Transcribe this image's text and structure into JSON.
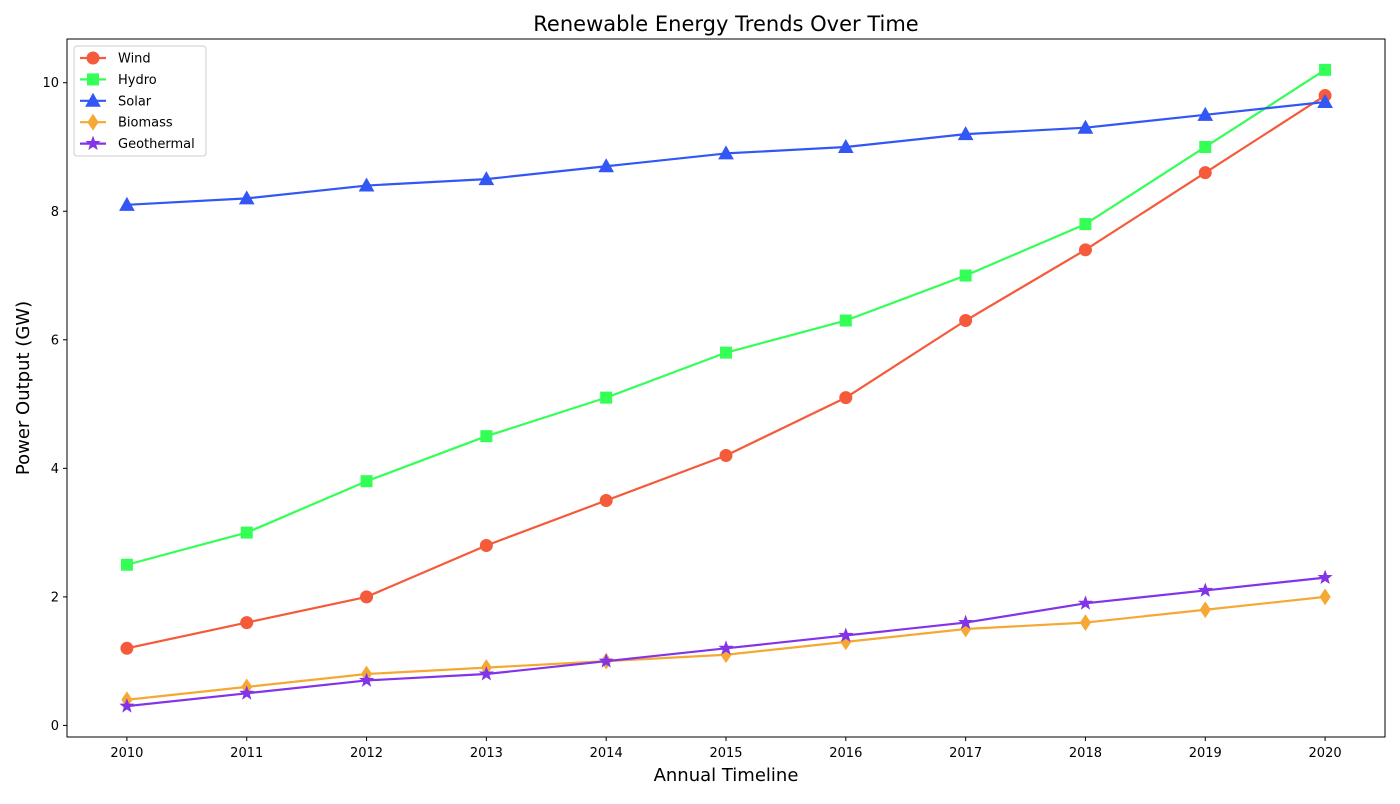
{
  "chart_data": {
    "type": "line",
    "title": "Renewable Energy Trends Over Time",
    "xlabel": "Annual Timeline",
    "ylabel": "Power Output (GW)",
    "x": [
      2010,
      2011,
      2012,
      2013,
      2014,
      2015,
      2016,
      2017,
      2018,
      2019,
      2020
    ],
    "x_tick_labels": [
      "2010",
      "2011",
      "2012",
      "2013",
      "2014",
      "2015",
      "2016",
      "2017",
      "2018",
      "2019",
      "2020"
    ],
    "xlim": [
      2009.5,
      2020.5
    ],
    "ylim": [
      -0.18,
      10.68
    ],
    "y_ticks": [
      0,
      2,
      4,
      6,
      8,
      10
    ],
    "y_tick_labels": [
      "0",
      "2",
      "4",
      "6",
      "8",
      "10"
    ],
    "grid": false,
    "legend_position": "top-left",
    "series": [
      {
        "name": "Wind",
        "color": "#f55a3a",
        "marker": "circle",
        "values": [
          1.2,
          1.6,
          2.0,
          2.8,
          3.5,
          4.2,
          5.1,
          6.3,
          7.4,
          8.6,
          9.8
        ]
      },
      {
        "name": "Hydro",
        "color": "#33ff57",
        "marker": "square",
        "values": [
          2.5,
          3.0,
          3.8,
          4.5,
          5.1,
          5.8,
          6.3,
          7.0,
          7.8,
          9.0,
          10.2
        ]
      },
      {
        "name": "Solar",
        "color": "#3357f5",
        "marker": "triangle",
        "values": [
          8.1,
          8.2,
          8.4,
          8.5,
          8.7,
          8.9,
          9.0,
          9.2,
          9.3,
          9.5,
          9.7
        ]
      },
      {
        "name": "Biomass",
        "color": "#f5a833",
        "marker": "diamond",
        "values": [
          0.4,
          0.6,
          0.8,
          0.9,
          1.0,
          1.1,
          1.3,
          1.5,
          1.6,
          1.8,
          2.0
        ]
      },
      {
        "name": "Geothermal",
        "color": "#8333e8",
        "marker": "star",
        "values": [
          0.3,
          0.5,
          0.7,
          0.8,
          1.0,
          1.2,
          1.4,
          1.6,
          1.9,
          2.1,
          2.3
        ]
      }
    ]
  }
}
